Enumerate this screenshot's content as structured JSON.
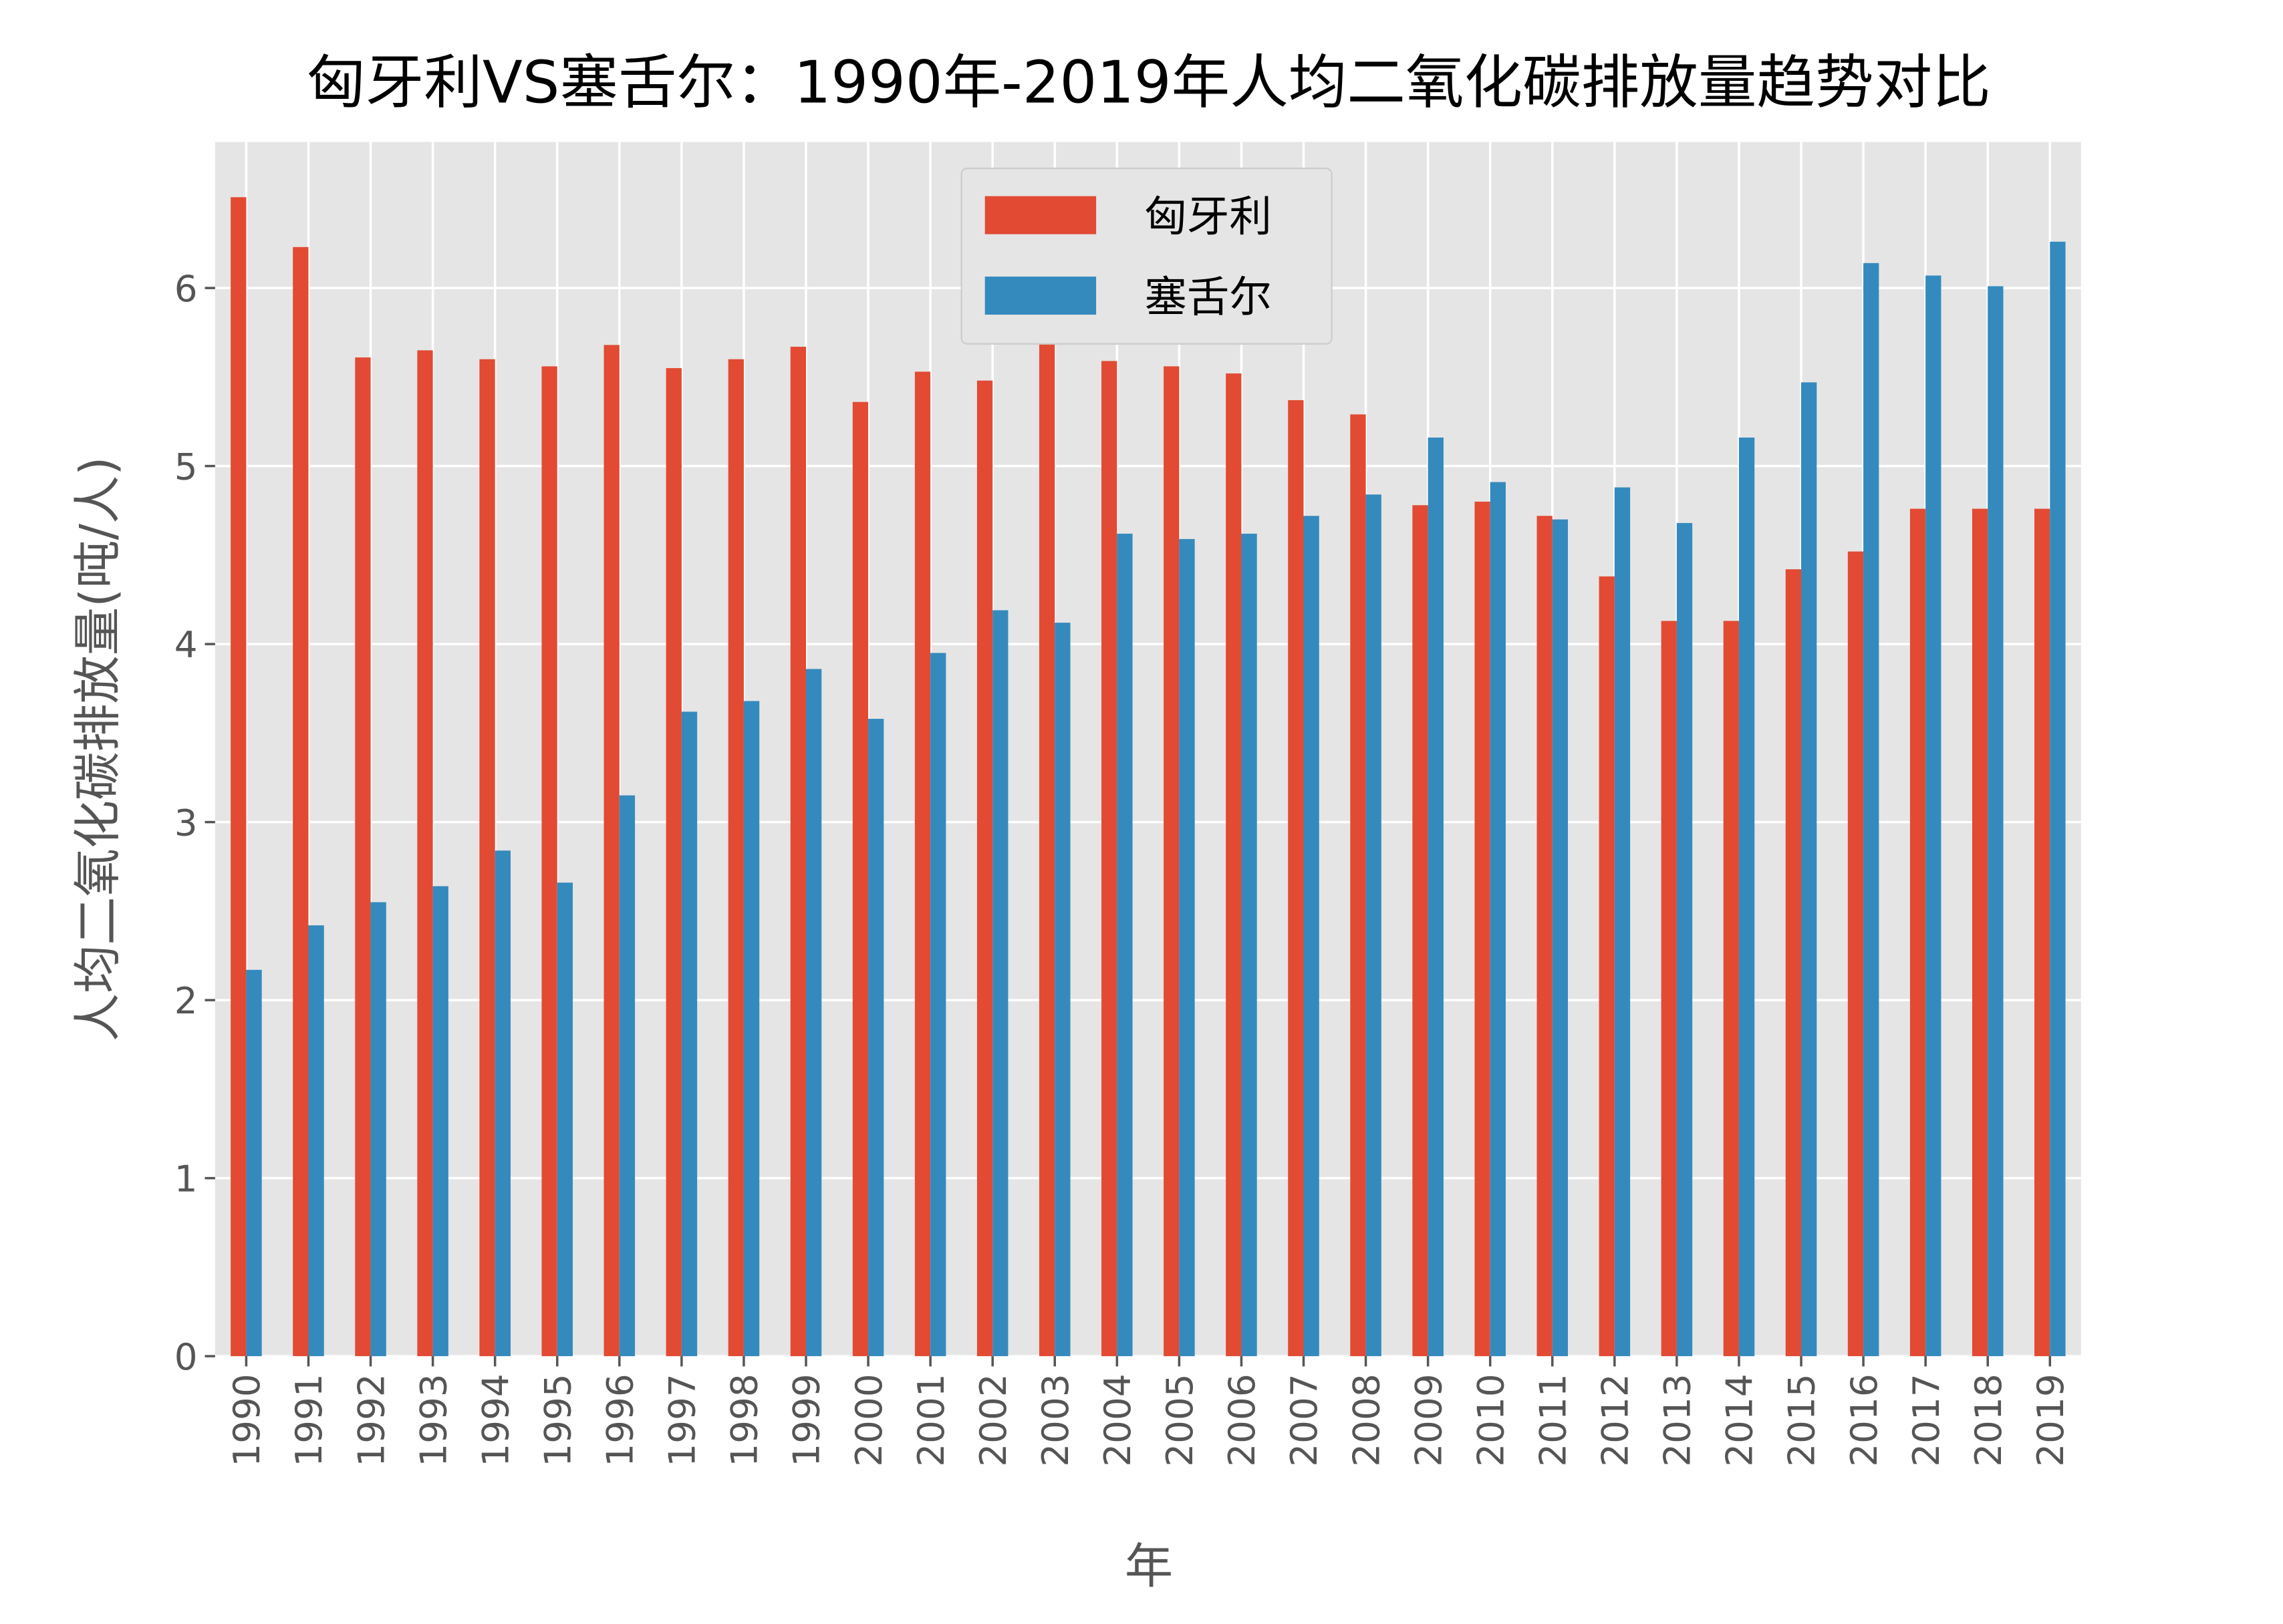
{
  "chart_data": {
    "type": "bar",
    "title": "匈牙利VS塞舌尔：1990年-2019年人均二氧化碳排放量趋势对比",
    "xlabel": "年",
    "ylabel": "人均二氧化碳排放量(吨/人)",
    "ylim": [
      0,
      6.82
    ],
    "yticks": [
      0,
      1,
      2,
      3,
      4,
      5,
      6
    ],
    "grid": true,
    "legend_position": "top-center",
    "categories": [
      "1990",
      "1991",
      "1992",
      "1993",
      "1994",
      "1995",
      "1996",
      "1997",
      "1998",
      "1999",
      "2000",
      "2001",
      "2002",
      "2003",
      "2004",
      "2005",
      "2006",
      "2007",
      "2008",
      "2009",
      "2010",
      "2011",
      "2012",
      "2013",
      "2014",
      "2015",
      "2016",
      "2017",
      "2018",
      "2019"
    ],
    "series": [
      {
        "name": "匈牙利",
        "color": "#E24A33",
        "values": [
          6.51,
          6.23,
          5.61,
          5.65,
          5.6,
          5.56,
          5.68,
          5.55,
          5.6,
          5.67,
          5.36,
          5.53,
          5.48,
          5.75,
          5.59,
          5.56,
          5.52,
          5.37,
          5.29,
          4.78,
          4.8,
          4.72,
          4.38,
          4.13,
          4.13,
          4.42,
          4.52,
          4.76,
          4.76,
          4.76
        ]
      },
      {
        "name": "塞舌尔",
        "color": "#348ABD",
        "values": [
          2.17,
          2.42,
          2.55,
          2.64,
          2.84,
          2.66,
          3.15,
          3.62,
          3.68,
          3.86,
          3.58,
          3.95,
          4.19,
          4.12,
          4.62,
          4.59,
          4.62,
          4.72,
          4.84,
          5.16,
          4.91,
          4.7,
          4.88,
          4.68,
          5.16,
          5.47,
          6.14,
          6.07,
          6.01,
          6.26
        ]
      }
    ],
    "background_color": "#E5E5E5"
  }
}
